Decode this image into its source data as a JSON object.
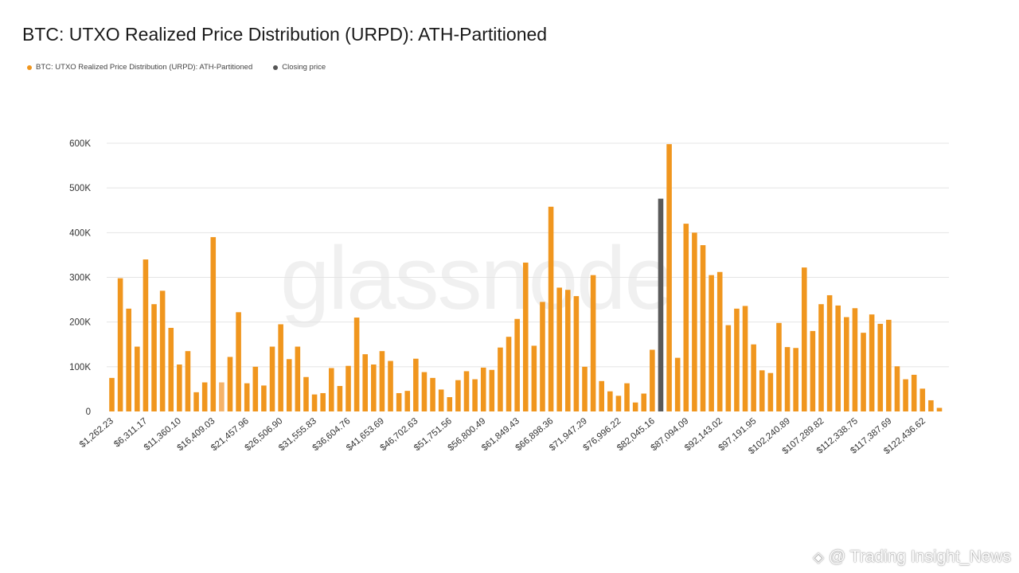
{
  "chart_data": {
    "type": "bar",
    "title": "BTC: UTXO Realized Price Distribution (URPD): ATH-Partitioned",
    "legend": [
      {
        "label": "BTC: UTXO Realized Price Distribution (URPD): ATH-Partitioned",
        "color": "#f0961e"
      },
      {
        "label": "Closing price",
        "color": "#555555"
      }
    ],
    "bar_color": "#f0961e",
    "closing_color": "#5a5a5a",
    "highlight_color": "#f5b36a",
    "closing_index": 65,
    "highlight_index": 13,
    "ylim": [
      0,
      600000
    ],
    "yticks": [
      0,
      100000,
      200000,
      300000,
      400000,
      500000,
      600000
    ],
    "ytick_labels": [
      "0",
      "100K",
      "200K",
      "300K",
      "400K",
      "500K",
      "600K"
    ],
    "xtick_labels": [
      "$1,262.23",
      "$6,311.17",
      "$11,360.10",
      "$16,409.03",
      "$21,457.96",
      "$26,506.90",
      "$31,555.83",
      "$36,604.76",
      "$41,653.69",
      "$46,702.63",
      "$51,751.56",
      "$56,800.49",
      "$61,849.43",
      "$66,898.36",
      "$71,947.29",
      "$76,996.22",
      "$82,045.16",
      "$87,094.09",
      "$92,143.02",
      "$97,191.95",
      "$102,240.89",
      "$107,289.82",
      "$112,338.75",
      "$117,387.69",
      "$122,436.62"
    ],
    "values": [
      75000,
      298000,
      230000,
      145000,
      340000,
      240000,
      270000,
      187000,
      105000,
      135000,
      43000,
      65000,
      390000,
      65000,
      122000,
      222000,
      63000,
      100000,
      58000,
      145000,
      195000,
      117000,
      145000,
      77000,
      38000,
      41000,
      97000,
      57000,
      102000,
      210000,
      128000,
      105000,
      135000,
      113000,
      41000,
      46000,
      118000,
      88000,
      75000,
      49000,
      32000,
      70000,
      90000,
      72000,
      98000,
      93000,
      143000,
      167000,
      207000,
      333000,
      147000,
      245000,
      458000,
      277000,
      272000,
      258000,
      100000,
      305000,
      68000,
      45000,
      35000,
      63000,
      20000,
      40000,
      138000,
      476000,
      598000,
      120000,
      420000,
      400000,
      372000,
      305000,
      312000,
      193000,
      230000,
      236000,
      150000,
      92000,
      86000,
      198000,
      144000,
      142000,
      322000,
      180000,
      240000,
      260000,
      237000,
      211000,
      231000,
      176000,
      217000,
      196000,
      205000,
      101000,
      72000,
      82000,
      51000,
      25000,
      8000
    ]
  },
  "watermark": "glassnode",
  "credit": {
    "icon": "◈",
    "text": "@ Trading Insight_News"
  }
}
